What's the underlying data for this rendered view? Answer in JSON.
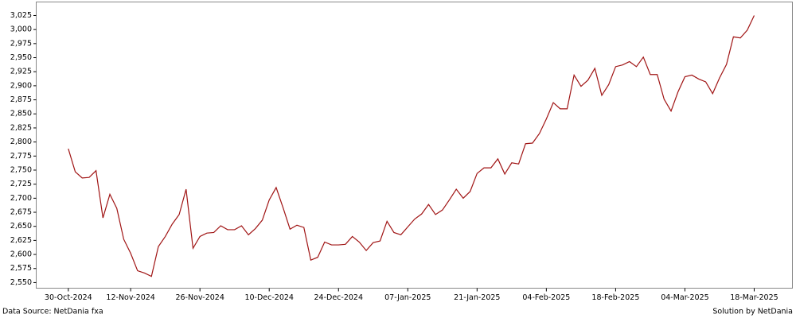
{
  "chart_data": {
    "type": "line",
    "x": [
      "2024-10-30",
      "2024-10-31",
      "2024-11-01",
      "2024-11-04",
      "2024-11-05",
      "2024-11-06",
      "2024-11-07",
      "2024-11-08",
      "2024-11-11",
      "2024-11-12",
      "2024-11-13",
      "2024-11-14",
      "2024-11-15",
      "2024-11-18",
      "2024-11-19",
      "2024-11-20",
      "2024-11-21",
      "2024-11-22",
      "2024-11-25",
      "2024-11-26",
      "2024-11-27",
      "2024-11-28",
      "2024-11-29",
      "2024-12-02",
      "2024-12-03",
      "2024-12-04",
      "2024-12-05",
      "2024-12-06",
      "2024-12-09",
      "2024-12-10",
      "2024-12-11",
      "2024-12-12",
      "2024-12-13",
      "2024-12-16",
      "2024-12-17",
      "2024-12-18",
      "2024-12-19",
      "2024-12-20",
      "2024-12-23",
      "2024-12-24",
      "2024-12-25",
      "2024-12-26",
      "2024-12-27",
      "2024-12-30",
      "2024-12-31",
      "2025-01-01",
      "2025-01-02",
      "2025-01-03",
      "2025-01-06",
      "2025-01-07",
      "2025-01-08",
      "2025-01-09",
      "2025-01-10",
      "2025-01-13",
      "2025-01-14",
      "2025-01-15",
      "2025-01-16",
      "2025-01-17",
      "2025-01-20",
      "2025-01-21",
      "2025-01-22",
      "2025-01-23",
      "2025-01-24",
      "2025-01-27",
      "2025-01-28",
      "2025-01-29",
      "2025-01-30",
      "2025-01-31",
      "2025-02-03",
      "2025-02-04",
      "2025-02-05",
      "2025-02-06",
      "2025-02-07",
      "2025-02-10",
      "2025-02-11",
      "2025-02-12",
      "2025-02-13",
      "2025-02-14",
      "2025-02-17",
      "2025-02-18",
      "2025-02-19",
      "2025-02-20",
      "2025-02-21",
      "2025-02-24",
      "2025-02-25",
      "2025-02-26",
      "2025-02-27",
      "2025-02-28",
      "2025-03-03",
      "2025-03-04",
      "2025-03-05",
      "2025-03-06",
      "2025-03-07",
      "2025-03-10",
      "2025-03-11",
      "2025-03-12",
      "2025-03-13",
      "2025-03-14",
      "2025-03-17",
      "2025-03-18"
    ],
    "series": [
      {
        "color": "#a01414",
        "values": [
          2788,
          2747,
          2736,
          2737,
          2749,
          2665,
          2707,
          2682,
          2627,
          2602,
          2571,
          2567,
          2561,
          2614,
          2632,
          2654,
          2671,
          2716,
          2611,
          2632,
          2638,
          2639,
          2651,
          2644,
          2644,
          2651,
          2635,
          2646,
          2661,
          2697,
          2719,
          2683,
          2645,
          2652,
          2648,
          2590,
          2595,
          2622,
          2617,
          2617,
          2618,
          2632,
          2622,
          2607,
          2621,
          2624,
          2659,
          2639,
          2635,
          2649,
          2663,
          2672,
          2689,
          2671,
          2679,
          2697,
          2716,
          2700,
          2712,
          2744,
          2754,
          2754,
          2770,
          2743,
          2763,
          2761,
          2797,
          2798,
          2815,
          2841,
          2870,
          2859,
          2859,
          2919,
          2899,
          2910,
          2931,
          2883,
          2902,
          2934,
          2937,
          2943,
          2934,
          2951,
          2920,
          2920,
          2876,
          2855,
          2889,
          2916,
          2919,
          2912,
          2907,
          2886,
          2914,
          2938,
          2987,
          2985,
          2999,
          3025
        ]
      }
    ],
    "xlim": [
      "2024-10-24",
      "2025-03-25"
    ],
    "xticks": [
      {
        "value": "2024-10-30",
        "label": "30-Oct-2024"
      },
      {
        "value": "2024-11-12",
        "label": "12-Nov-2024"
      },
      {
        "value": "2024-11-26",
        "label": "26-Nov-2024"
      },
      {
        "value": "2024-12-10",
        "label": "10-Dec-2024"
      },
      {
        "value": "2024-12-24",
        "label": "24-Dec-2024"
      },
      {
        "value": "2025-01-07",
        "label": "07-Jan-2025"
      },
      {
        "value": "2025-01-21",
        "label": "21-Jan-2025"
      },
      {
        "value": "2025-02-04",
        "label": "04-Feb-2025"
      },
      {
        "value": "2025-02-18",
        "label": "18-Feb-2025"
      },
      {
        "value": "2025-03-04",
        "label": "04-Mar-2025"
      },
      {
        "value": "2025-03-18",
        "label": "18-Mar-2025"
      }
    ],
    "ylim": [
      2540,
      3049
    ],
    "yticks": [
      {
        "value": 2550,
        "label": "2,550"
      },
      {
        "value": 2575,
        "label": "2,575"
      },
      {
        "value": 2600,
        "label": "2,600"
      },
      {
        "value": 2625,
        "label": "2,625"
      },
      {
        "value": 2650,
        "label": "2,650"
      },
      {
        "value": 2675,
        "label": "2,675"
      },
      {
        "value": 2700,
        "label": "2,700"
      },
      {
        "value": 2725,
        "label": "2,725"
      },
      {
        "value": 2750,
        "label": "2,750"
      },
      {
        "value": 2775,
        "label": "2,775"
      },
      {
        "value": 2800,
        "label": "2,800"
      },
      {
        "value": 2825,
        "label": "2,825"
      },
      {
        "value": 2850,
        "label": "2,850"
      },
      {
        "value": 2875,
        "label": "2,875"
      },
      {
        "value": 2900,
        "label": "2,900"
      },
      {
        "value": 2925,
        "label": "2,925"
      },
      {
        "value": 2950,
        "label": "2,950"
      },
      {
        "value": 2975,
        "label": "2,975"
      },
      {
        "value": 3000,
        "label": "3,000"
      },
      {
        "value": 3025,
        "label": "3,025"
      }
    ],
    "grid": false,
    "source": "Data Source: NetDania fxa",
    "credit": "Solution by NetDania"
  }
}
